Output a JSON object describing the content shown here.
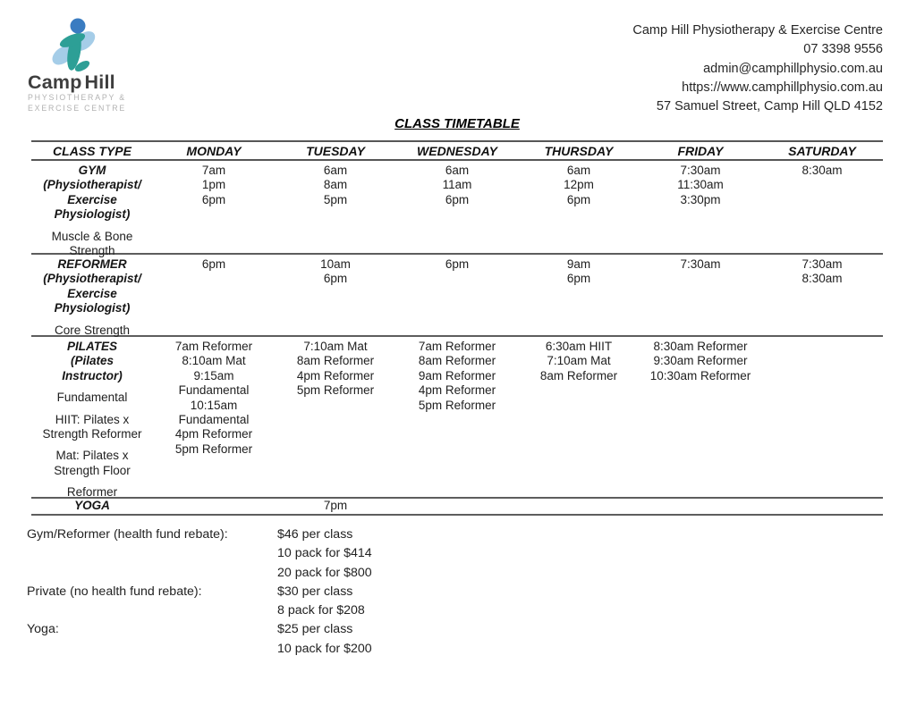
{
  "logo": {
    "camp": "Camp",
    "hill": "Hill",
    "subtitle1": "PHYSIOTHERAPY &",
    "subtitle2": "EXERCISE CENTRE",
    "colors": {
      "head": "#3a7cc1",
      "light": "#a5cde8",
      "teal": "#2d9f96"
    }
  },
  "contact": {
    "lines": [
      "Camp Hill Physiotherapy & Exercise Centre",
      "07 3398 9556",
      "admin@camphillphysio.com.au",
      "https://www.camphillphysio.com.au",
      "57 Samuel Street, Camp Hill QLD 4152"
    ]
  },
  "title": "CLASS TIMETABLE",
  "timetable": {
    "headers": [
      "CLASS TYPE",
      "MONDAY",
      "TUESDAY",
      "WEDNESDAY",
      "THURSDAY",
      "FRIDAY",
      "SATURDAY"
    ],
    "rows": [
      {
        "id": "gym",
        "type_bold": [
          "GYM",
          "(Physiotherapist/",
          "Exercise",
          "Physiologist)"
        ],
        "type_groups": [
          [
            "Muscle & Bone",
            "Strength"
          ]
        ],
        "days": [
          [
            "7am",
            "1pm",
            "6pm"
          ],
          [
            "6am",
            "8am",
            "5pm"
          ],
          [
            "6am",
            "11am",
            "6pm"
          ],
          [
            "6am",
            "12pm",
            "6pm"
          ],
          [
            "7:30am",
            "11:30am",
            "3:30pm"
          ],
          [
            "8:30am"
          ]
        ]
      },
      {
        "id": "reformer",
        "type_bold": [
          "REFORMER",
          "(Physiotherapist/",
          "Exercise",
          "Physiologist)"
        ],
        "type_groups": [
          [
            "Core Strength"
          ]
        ],
        "days": [
          [
            "6pm"
          ],
          [
            "10am",
            "6pm"
          ],
          [
            "6pm"
          ],
          [
            "9am",
            "6pm"
          ],
          [
            "7:30am"
          ],
          [
            "7:30am",
            "8:30am"
          ]
        ]
      },
      {
        "id": "pilates",
        "type_bold": [
          "PILATES",
          "(Pilates",
          "Instructor)"
        ],
        "type_groups": [
          [
            "Fundamental"
          ],
          [
            "HIIT: Pilates x",
            "Strength Reformer"
          ],
          [
            "Mat: Pilates x",
            "Strength Floor"
          ],
          [
            "Reformer"
          ]
        ],
        "days": [
          [
            "7am Reformer",
            "8:10am Mat",
            "9:15am",
            "Fundamental",
            "10:15am",
            "Fundamental",
            "4pm Reformer",
            "5pm Reformer"
          ],
          [
            "7:10am Mat",
            "8am Reformer",
            "4pm Reformer",
            "5pm Reformer"
          ],
          [
            "7am Reformer",
            "8am Reformer",
            "9am Reformer",
            "4pm Reformer",
            "5pm Reformer"
          ],
          [
            "6:30am HIIT",
            "7:10am Mat",
            "8am Reformer"
          ],
          [
            "8:30am Reformer",
            "9:30am Reformer",
            "10:30am Reformer"
          ],
          []
        ]
      },
      {
        "id": "yoga",
        "type_bold": [
          "YOGA"
        ],
        "type_groups": [],
        "days": [
          [],
          [
            "7pm"
          ],
          [],
          [],
          [],
          []
        ]
      }
    ]
  },
  "pricing": [
    {
      "label": "Gym/Reformer (health fund rebate):",
      "items": [
        "$46 per class",
        "10 pack for $414",
        "20 pack for $800"
      ]
    },
    {
      "label": "Private (no health fund rebate):",
      "items": [
        "$30 per class",
        "8 pack for $208"
      ]
    },
    {
      "label": "Yoga:",
      "items": [
        "$25 per class",
        "10 pack for $200"
      ]
    }
  ]
}
